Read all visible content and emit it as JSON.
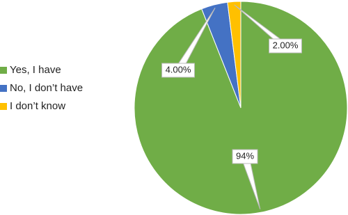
{
  "chart_data": {
    "type": "pie",
    "categories": [
      "Yes, I have",
      "No, I don’t have",
      "I don’t know"
    ],
    "values": [
      94,
      4,
      2
    ],
    "value_labels": [
      "94%",
      "4.00%",
      "2.00%"
    ],
    "colors": [
      "#70ad47",
      "#4472c4",
      "#ffc000"
    ],
    "legend": "left"
  }
}
